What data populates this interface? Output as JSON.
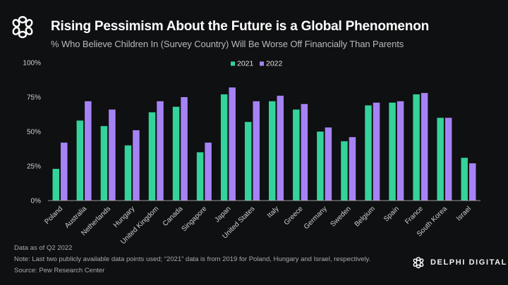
{
  "header": {
    "title": "Rising Pessimism About the Future is a Global Phenomenon",
    "subtitle": "% Who Believe Children In (Survey Country) Will Be Worse Off Financially Than Parents",
    "logo_icon": "delphi-knot-icon"
  },
  "chart_data": {
    "type": "bar",
    "title": "Rising Pessimism About the Future is a Global Phenomenon",
    "subtitle": "% Who Believe Children In (Survey Country) Will Be Worse Off Financially Than Parents",
    "xlabel": "",
    "ylabel": "",
    "ylim": [
      0,
      100
    ],
    "yticks": [
      0,
      25,
      50,
      75,
      100
    ],
    "ytick_labels": [
      "0%",
      "25%",
      "50%",
      "75%",
      "100%"
    ],
    "grid": false,
    "legend_position": "top-center",
    "categories": [
      "Poland",
      "Australia",
      "Netherlands",
      "Hungary",
      "United Kingdom",
      "Canada",
      "Singapore",
      "Japan",
      "United States",
      "Italy",
      "Greece",
      "Germany",
      "Sweden",
      "Belgium",
      "Spain",
      "France",
      "South Korea",
      "Israel"
    ],
    "series": [
      {
        "name": "2021",
        "color": "#34d399",
        "values": [
          23,
          58,
          54,
          40,
          64,
          68,
          35,
          77,
          57,
          72,
          66,
          50,
          43,
          69,
          71,
          77,
          60,
          31
        ]
      },
      {
        "name": "2022",
        "color": "#a583f5",
        "values": [
          42,
          72,
          66,
          51,
          72,
          75,
          42,
          82,
          72,
          76,
          70,
          53,
          46,
          71,
          72,
          78,
          60,
          27
        ]
      }
    ]
  },
  "footer": {
    "line1": "Data as of Q2 2022",
    "line2": "Note: Last two publicly available data points used; “2021” data is from 2019 for Poland, Hungary and Israel, respectively.",
    "line3": "Source: Pew Research Center",
    "brand": "DELPHI DIGITAL"
  }
}
